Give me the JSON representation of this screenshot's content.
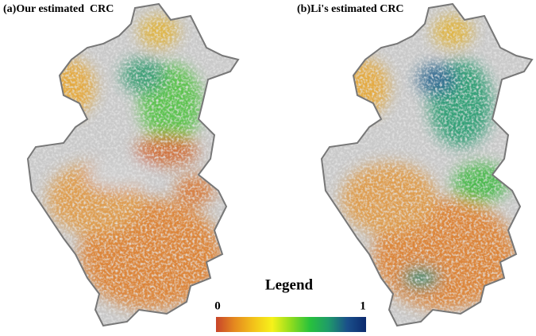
{
  "panels": [
    {
      "title": "(a)Our estimated  CRC"
    },
    {
      "title": "(b)Li's estimated CRC"
    }
  ],
  "legend": {
    "title": "Legend",
    "min": 0,
    "max": 1,
    "colors": [
      "#c8442a",
      "#e58a1f",
      "#f3c21a",
      "#f6f21a",
      "#8fdc1e",
      "#28c23c",
      "#1f9a6a",
      "#1a4f8a",
      "#0c2a6e"
    ]
  }
}
